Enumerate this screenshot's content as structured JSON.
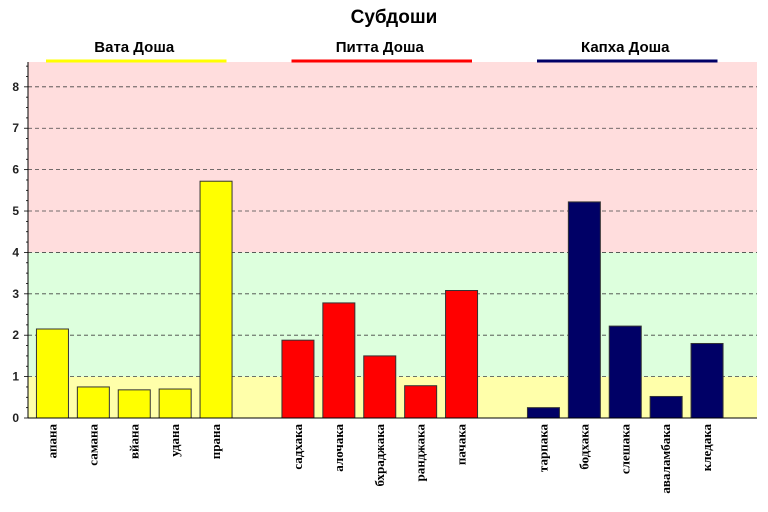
{
  "chart_data": {
    "type": "bar",
    "title": "Субдоши",
    "ylim": [
      0,
      8.6
    ],
    "yticks": [
      0,
      1,
      2,
      3,
      4,
      5,
      6,
      7,
      8
    ],
    "grid": true,
    "bands": [
      {
        "from": 0,
        "to": 1,
        "color": "#ffffaa"
      },
      {
        "from": 1,
        "to": 4,
        "color": "#ddffdd"
      },
      {
        "from": 4,
        "to": 8.6,
        "color": "#ffdddd"
      }
    ],
    "groups": [
      {
        "name": "Вата Доша",
        "color": "#ffff00",
        "categories": [
          "апана",
          "самана",
          "вйана",
          "удана",
          "прана"
        ],
        "values": [
          2.15,
          0.75,
          0.68,
          0.7,
          5.72
        ]
      },
      {
        "name": "Питта Доша",
        "color": "#ff0000",
        "categories": [
          "садхака",
          "алочака",
          "бхраджака",
          "ранджака",
          "пачака"
        ],
        "values": [
          1.88,
          2.78,
          1.5,
          0.78,
          3.08
        ]
      },
      {
        "name": "Капха Доша",
        "color": "#000066",
        "categories": [
          "тарпака",
          "бодхака",
          "слешака",
          "аваламбака",
          "кледака"
        ],
        "values": [
          0.25,
          5.22,
          2.22,
          0.52,
          1.8
        ]
      }
    ]
  }
}
